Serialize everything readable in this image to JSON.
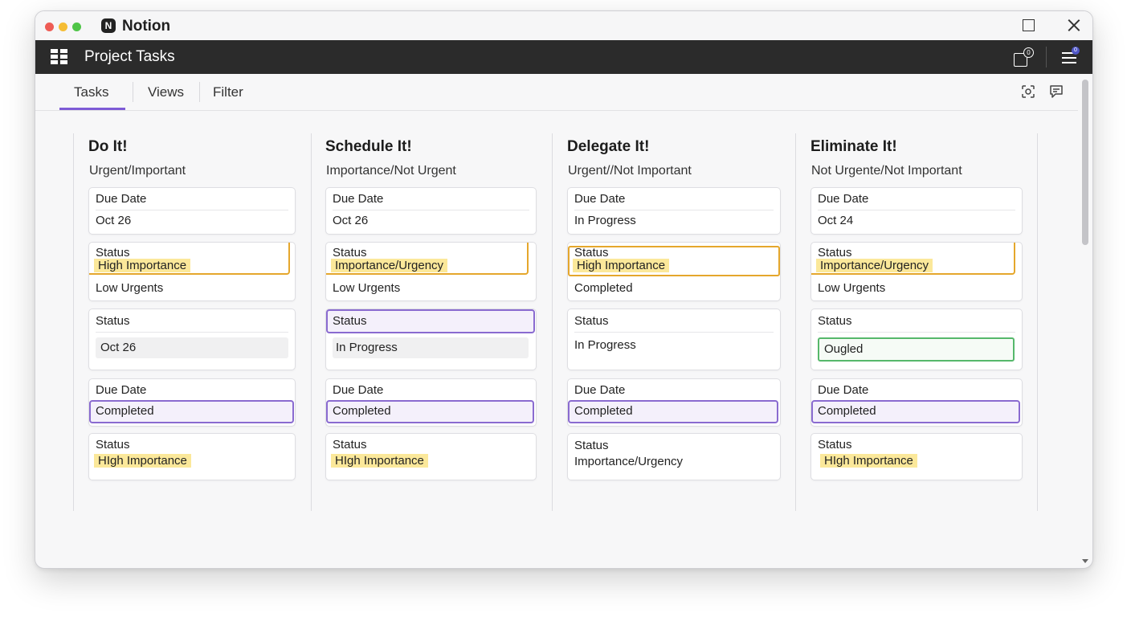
{
  "app": {
    "name": "Notion",
    "logo_glyph": "N"
  },
  "header": {
    "title": "Project Tasks",
    "notification_count": "0",
    "menu_badge": "0"
  },
  "tabs": [
    {
      "label": "Tasks"
    },
    {
      "label": "Views"
    },
    {
      "label": "Filter"
    }
  ],
  "columns": [
    {
      "title": "Do It!",
      "subtitle": "Urgent/Important",
      "cards": [
        {
          "label": "Due Date",
          "value": "Oct 26"
        },
        {
          "label": "Status",
          "highlight": "High Importance",
          "value": "Low Urgents"
        },
        {
          "label": "Status",
          "value": "Oct 26"
        },
        {
          "label": "Due Date",
          "value": "Completed"
        },
        {
          "label": "Status",
          "value": "HIgh Importance"
        }
      ]
    },
    {
      "title": "Schedule It!",
      "subtitle": "Importance/Not Urgent",
      "cards": [
        {
          "label": "Due Date",
          "value": "Oct 26"
        },
        {
          "label": "Status",
          "highlight": "Importance/Urgency",
          "value": "Low Urgents"
        },
        {
          "label": "Status",
          "value": "In Progress"
        },
        {
          "label": "Due Date",
          "value": "Completed"
        },
        {
          "label": "Status",
          "value": "HIgh Importance"
        }
      ]
    },
    {
      "title": "Delegate It!",
      "subtitle": "Urgent//Not Important",
      "cards": [
        {
          "label": "Due Date",
          "value": "In Progress"
        },
        {
          "label": "Status",
          "highlight": "High Importance",
          "value": "Completed"
        },
        {
          "label": "Status",
          "value": "In Progress"
        },
        {
          "label": "Due Date",
          "value": "Completed"
        },
        {
          "label": "Status",
          "value": "Importance/Urgency"
        }
      ]
    },
    {
      "title": "Eliminate It!",
      "subtitle": "Not Urgente/Not Important",
      "cards": [
        {
          "label": "Due Date",
          "value": "Oct 24"
        },
        {
          "label": "Status",
          "highlight": "Importance/Urgency",
          "value": "Low Urgents"
        },
        {
          "label": "Status",
          "value": "Ougled"
        },
        {
          "label": "Due Date",
          "value": "Completed"
        },
        {
          "label": "Status",
          "value": "HIgh Importance"
        }
      ]
    }
  ],
  "colors": {
    "header_bg": "#2b2b2b",
    "tab_accent": "#7e5bd6",
    "highlight_yellow": "#fbe89a",
    "outline_orange": "#e5a72c",
    "outline_purple": "#8a6bd0",
    "outline_green": "#56b86b"
  }
}
